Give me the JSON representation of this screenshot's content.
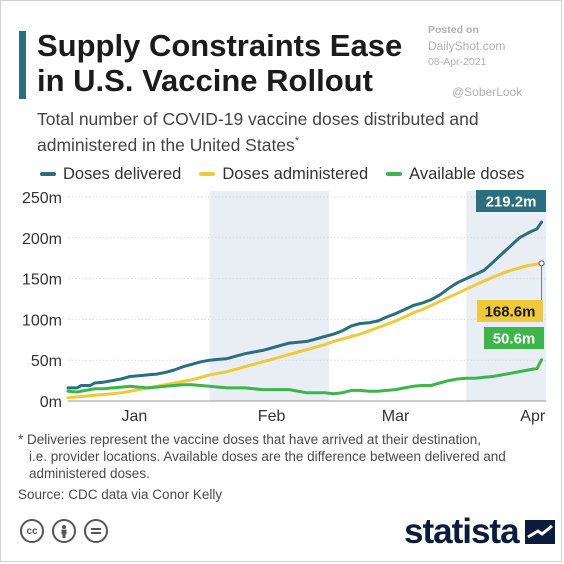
{
  "header": {
    "title_line1": "Supply Constraints Ease",
    "title_line2": "in U.S. Vaccine Rollout",
    "subtitle": "Total number of COVID-19 vaccine doses distributed and administered in the United States",
    "subtitle_mark": "*"
  },
  "watermark": {
    "posted_label": "Posted on",
    "site": "DailyShot.com",
    "date": "08-Apr-2021",
    "handle": "@SoberLook"
  },
  "footnote": {
    "line1": "* Deliveries represent the vaccine doses that have arrived at their destination,",
    "line2": "i.e. provider locations. Available doses are the difference between delivered and administered doses.",
    "source": "Source: CDC data via Conor Kelly"
  },
  "brand": {
    "name": "statista"
  },
  "license_icons": [
    "cc-icon",
    "person-icon",
    "equals-icon"
  ],
  "colors": {
    "delivered": "#2a6f7f",
    "administered": "#f0c93a",
    "available": "#3cb54a",
    "shade": "#e9eef4",
    "grid": "#dcdcdc",
    "axis_text": "#333333"
  },
  "chart_data": {
    "type": "line",
    "x_unit": "days since Dec 21, 2020",
    "x_range": [
      0,
      108
    ],
    "ylim": [
      0,
      250
    ],
    "y_ticks": [
      0,
      50,
      100,
      150,
      200,
      250
    ],
    "y_tick_labels": [
      "0m",
      "50m",
      "100m",
      "150m",
      "200m",
      "250m"
    ],
    "x_tick_labels": [
      {
        "label": "Jan",
        "x": 15
      },
      {
        "label": "Feb",
        "x": 46
      },
      {
        "label": "Mar",
        "x": 74
      },
      {
        "label": "Apr",
        "x": 105
      }
    ],
    "shaded_bands": [
      [
        32,
        59
      ],
      [
        90,
        108
      ]
    ],
    "legend": [
      "Doses delivered",
      "Doses administered",
      "Available doses"
    ],
    "series": [
      {
        "name": "Doses delivered",
        "key": "delivered",
        "end_label": "219.2m",
        "points": [
          [
            0,
            16
          ],
          [
            2,
            16
          ],
          [
            3,
            19
          ],
          [
            5,
            19
          ],
          [
            6,
            22
          ],
          [
            8,
            23
          ],
          [
            10,
            25
          ],
          [
            12,
            27
          ],
          [
            14,
            30
          ],
          [
            16,
            31
          ],
          [
            18,
            32
          ],
          [
            20,
            33
          ],
          [
            22,
            35
          ],
          [
            24,
            38
          ],
          [
            26,
            42
          ],
          [
            28,
            45
          ],
          [
            30,
            48
          ],
          [
            32,
            50
          ],
          [
            34,
            51
          ],
          [
            36,
            52
          ],
          [
            38,
            55
          ],
          [
            40,
            58
          ],
          [
            42,
            60
          ],
          [
            44,
            62
          ],
          [
            46,
            65
          ],
          [
            48,
            68
          ],
          [
            50,
            71
          ],
          [
            52,
            72
          ],
          [
            54,
            73
          ],
          [
            56,
            76
          ],
          [
            58,
            79
          ],
          [
            60,
            82
          ],
          [
            62,
            86
          ],
          [
            64,
            92
          ],
          [
            66,
            95
          ],
          [
            68,
            96
          ],
          [
            70,
            98
          ],
          [
            72,
            103
          ],
          [
            74,
            107
          ],
          [
            76,
            112
          ],
          [
            78,
            117
          ],
          [
            80,
            120
          ],
          [
            82,
            124
          ],
          [
            84,
            130
          ],
          [
            86,
            138
          ],
          [
            88,
            145
          ],
          [
            90,
            150
          ],
          [
            92,
            155
          ],
          [
            94,
            160
          ],
          [
            96,
            170
          ],
          [
            98,
            180
          ],
          [
            100,
            190
          ],
          [
            102,
            200
          ],
          [
            104,
            206
          ],
          [
            106,
            211
          ],
          [
            107,
            219.2
          ]
        ]
      },
      {
        "name": "Doses administered",
        "key": "administered",
        "end_label": "168.6m",
        "points": [
          [
            0,
            4
          ],
          [
            2,
            5
          ],
          [
            4,
            6
          ],
          [
            6,
            7
          ],
          [
            8,
            8
          ],
          [
            10,
            9
          ],
          [
            12,
            10
          ],
          [
            14,
            12
          ],
          [
            16,
            14
          ],
          [
            18,
            16
          ],
          [
            20,
            18
          ],
          [
            22,
            20
          ],
          [
            24,
            22
          ],
          [
            26,
            24
          ],
          [
            28,
            26
          ],
          [
            30,
            29
          ],
          [
            32,
            32
          ],
          [
            34,
            34
          ],
          [
            36,
            36
          ],
          [
            38,
            39
          ],
          [
            40,
            42
          ],
          [
            42,
            45
          ],
          [
            44,
            48
          ],
          [
            46,
            51
          ],
          [
            48,
            54
          ],
          [
            50,
            57
          ],
          [
            52,
            60
          ],
          [
            54,
            63
          ],
          [
            56,
            66
          ],
          [
            58,
            69
          ],
          [
            60,
            73
          ],
          [
            62,
            76
          ],
          [
            64,
            79
          ],
          [
            66,
            82
          ],
          [
            68,
            86
          ],
          [
            70,
            90
          ],
          [
            72,
            94
          ],
          [
            74,
            98
          ],
          [
            76,
            103
          ],
          [
            78,
            108
          ],
          [
            80,
            112
          ],
          [
            82,
            117
          ],
          [
            84,
            122
          ],
          [
            86,
            127
          ],
          [
            88,
            132
          ],
          [
            90,
            137
          ],
          [
            92,
            142
          ],
          [
            94,
            147
          ],
          [
            96,
            152
          ],
          [
            98,
            156
          ],
          [
            100,
            160
          ],
          [
            102,
            163
          ],
          [
            104,
            166
          ],
          [
            107,
            168.6
          ]
        ]
      },
      {
        "name": "Available doses",
        "key": "available",
        "end_label": "50.6m",
        "points": [
          [
            0,
            12
          ],
          [
            2,
            11
          ],
          [
            4,
            13
          ],
          [
            6,
            15
          ],
          [
            8,
            15
          ],
          [
            10,
            16
          ],
          [
            12,
            17
          ],
          [
            14,
            18
          ],
          [
            16,
            17
          ],
          [
            18,
            16
          ],
          [
            20,
            17
          ],
          [
            22,
            18
          ],
          [
            24,
            19
          ],
          [
            26,
            20
          ],
          [
            28,
            20
          ],
          [
            30,
            19
          ],
          [
            32,
            18
          ],
          [
            34,
            17
          ],
          [
            36,
            16
          ],
          [
            38,
            16
          ],
          [
            40,
            16
          ],
          [
            42,
            15
          ],
          [
            44,
            14
          ],
          [
            46,
            14
          ],
          [
            48,
            14
          ],
          [
            50,
            14
          ],
          [
            52,
            12
          ],
          [
            54,
            10
          ],
          [
            56,
            10
          ],
          [
            58,
            10
          ],
          [
            60,
            9
          ],
          [
            62,
            10
          ],
          [
            64,
            13
          ],
          [
            66,
            13
          ],
          [
            68,
            12
          ],
          [
            70,
            12
          ],
          [
            72,
            13
          ],
          [
            74,
            14
          ],
          [
            76,
            16
          ],
          [
            78,
            18
          ],
          [
            80,
            19
          ],
          [
            82,
            19
          ],
          [
            84,
            22
          ],
          [
            86,
            25
          ],
          [
            88,
            27
          ],
          [
            90,
            28
          ],
          [
            92,
            28
          ],
          [
            94,
            29
          ],
          [
            96,
            30
          ],
          [
            98,
            32
          ],
          [
            100,
            34
          ],
          [
            102,
            36
          ],
          [
            104,
            38
          ],
          [
            106,
            40
          ],
          [
            107,
            50.6
          ]
        ]
      }
    ]
  }
}
